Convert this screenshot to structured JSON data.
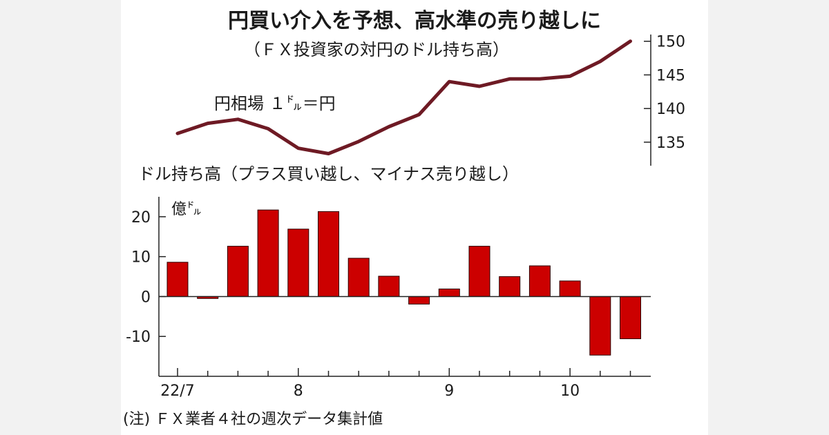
{
  "colors": {
    "line": "#6e1a24",
    "bar": "#cc0000",
    "bar_edge": "#2a0000",
    "axis": "#222222",
    "side_band": "#f2f2f2"
  },
  "chart_data": [
    {
      "type": "line",
      "title": "円買い介入を予想、高水準の売り越しに",
      "subtitle": "（ＦＸ投資家の対円のドル持ち高）",
      "series_label": "円相場 １㌦＝円",
      "x": [
        0,
        1,
        2,
        3,
        4,
        5,
        6,
        7,
        8,
        9,
        10,
        11,
        12,
        13,
        14,
        15
      ],
      "values": [
        136.3,
        137.8,
        138.4,
        137.0,
        134.1,
        133.3,
        135.1,
        137.3,
        139.1,
        144.0,
        143.3,
        144.4,
        144.4,
        144.8,
        147.0,
        150.0
      ],
      "y_axis": {
        "side": "right",
        "ylim": [
          131.5,
          151
        ],
        "ticks": [
          135,
          140,
          145,
          150
        ],
        "tick_labels": [
          "135",
          "140",
          "145",
          "150"
        ]
      }
    },
    {
      "type": "bar",
      "title": "ドル持ち高（プラス買い越し、マイナス売り越し）",
      "ylabel": "億㌦",
      "x": [
        0,
        1,
        2,
        3,
        4,
        5,
        6,
        7,
        8,
        9,
        10,
        11,
        12,
        13,
        14,
        15
      ],
      "values": [
        8.6,
        -0.5,
        12.6,
        21.7,
        16.9,
        21.3,
        9.6,
        5.1,
        -1.9,
        1.9,
        12.6,
        5.0,
        7.7,
        3.9,
        -14.7,
        -10.6
      ],
      "ylim": [
        -20,
        25
      ],
      "y_ticks": [
        -10,
        0,
        10,
        20
      ],
      "y_tick_labels": [
        "-10",
        "0",
        "10",
        "20"
      ],
      "x_tick_labels": [
        {
          "label": "22/7",
          "at": 0
        },
        {
          "label": "8",
          "at": 4
        },
        {
          "label": "9",
          "at": 9
        },
        {
          "label": "10",
          "at": 13
        }
      ]
    }
  ],
  "note": "(注) ＦＸ業者４社の週次データ集計値"
}
